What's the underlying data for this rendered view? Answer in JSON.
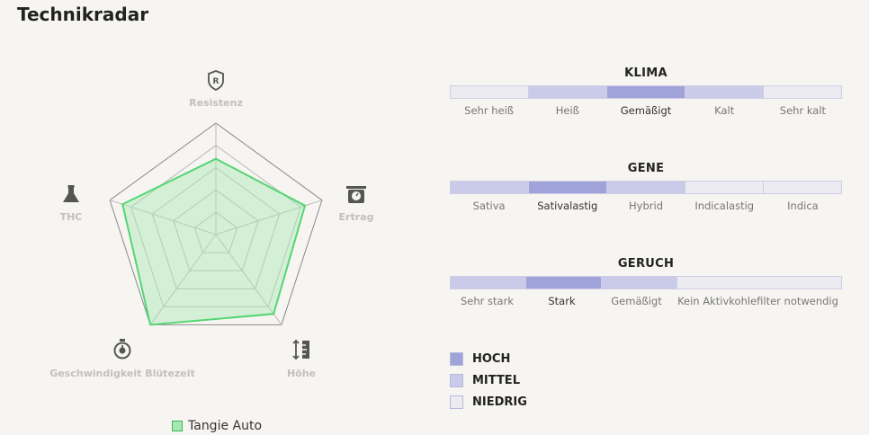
{
  "title": "Technikradar",
  "chart_data": {
    "type": "radar",
    "axes": [
      "Resistenz",
      "Ertrag",
      "Höhe",
      "Geschwindigkeit Blütezeit",
      "THC"
    ],
    "axis_icons": [
      "shield-r-icon",
      "scale-icon",
      "height-ruler-icon",
      "stopwatch-icon",
      "flask-icon"
    ],
    "range": [
      0,
      5
    ],
    "grid_levels": 5,
    "series": [
      {
        "name": "Tangie Auto",
        "values": [
          3.4,
          4.2,
          4.4,
          5.0,
          4.4
        ]
      }
    ],
    "colors": {
      "fill": "#a6e8b2",
      "stroke": "#55d676"
    }
  },
  "legend": {
    "label": "Tangie Auto"
  },
  "scales": [
    {
      "title": "KLIMA",
      "options": [
        "Sehr heiß",
        "Heiß",
        "Gemäßigt",
        "Kalt",
        "Sehr kalt"
      ],
      "levels": [
        "niedrig",
        "mittel",
        "hoch",
        "mittel",
        "niedrig"
      ]
    },
    {
      "title": "GENE",
      "options": [
        "Sativa",
        "Sativalastig",
        "Hybrid",
        "Indicalastig",
        "Indica"
      ],
      "levels": [
        "mittel",
        "hoch",
        "mittel",
        "niedrig",
        "niedrig"
      ]
    },
    {
      "title": "GERUCH",
      "options": [
        "Sehr stark",
        "Stark",
        "Gemäßigt",
        "Kein Aktivkohlefilter notwendig"
      ],
      "levels": [
        "mittel",
        "hoch",
        "mittel",
        "niedrig"
      ]
    }
  ],
  "key": [
    {
      "label": "HOCH",
      "level": "hoch"
    },
    {
      "label": "MITTEL",
      "level": "mittel"
    },
    {
      "label": "NIEDRIG",
      "level": "niedrig"
    }
  ],
  "level_colors": {
    "hoch": "#9fa3d9",
    "mittel": "#c9cbe8",
    "niedrig": "#ecebf1"
  }
}
